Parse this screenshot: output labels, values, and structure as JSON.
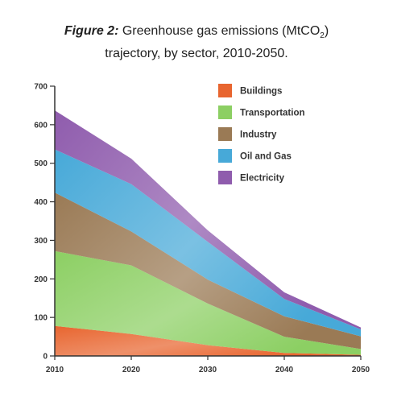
{
  "title": {
    "figure_label": "Figure 2:",
    "line1_pre": "Greenhouse gas emissions (MtCO",
    "line1_sub": "2",
    "line1_post": ")",
    "line2": "trajectory, by sector, 2010-2050."
  },
  "chart_data": {
    "type": "area",
    "stacked": true,
    "x": [
      2010,
      2020,
      2030,
      2040,
      2050
    ],
    "xticks": [
      "2010",
      "2020",
      "2030",
      "2040",
      "2050"
    ],
    "yticks": [
      "0",
      "100",
      "200",
      "300",
      "400",
      "500",
      "600",
      "700"
    ],
    "ylim": [
      0,
      700
    ],
    "xlim": [
      2010,
      2050
    ],
    "legend_position": "top-right",
    "series": [
      {
        "name": "Buildings",
        "color": "#e8652f",
        "values": [
          78,
          57,
          28,
          8,
          3
        ]
      },
      {
        "name": "Transportation",
        "color": "#8ccf63",
        "values": [
          194,
          178,
          108,
          42,
          15
        ]
      },
      {
        "name": "Industry",
        "color": "#9a7a55",
        "values": [
          152,
          88,
          62,
          53,
          33
        ]
      },
      {
        "name": "Oil and Gas",
        "color": "#47a9d8",
        "values": [
          112,
          123,
          98,
          45,
          18
        ]
      },
      {
        "name": "Electricity",
        "color": "#8f5cad",
        "values": [
          101,
          66,
          30,
          17,
          5
        ]
      }
    ]
  }
}
